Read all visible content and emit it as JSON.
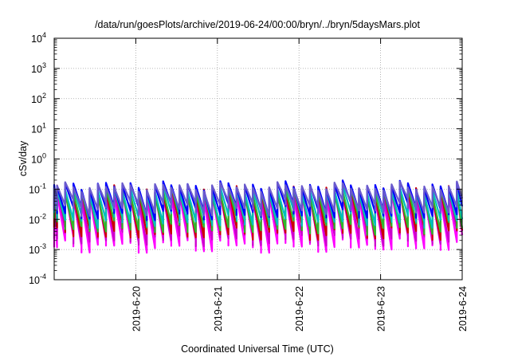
{
  "chart_data": {
    "type": "line",
    "title": "/data/run/goesPlots/archive/2019-06-24/00:00/bryn/../bryn/5daysMars.plot",
    "xlabel": "Coordinated Universal Time (UTC)",
    "ylabel": "cSv/day",
    "y_scale": "log",
    "ylim": [
      0.0001,
      10000
    ],
    "y_ticks": [
      {
        "value": 0.0001,
        "base": "10",
        "exp": "-4"
      },
      {
        "value": 0.001,
        "base": "10",
        "exp": "-3"
      },
      {
        "value": 0.01,
        "base": "10",
        "exp": "-2"
      },
      {
        "value": 0.1,
        "base": "10",
        "exp": "-1"
      },
      {
        "value": 1,
        "base": "10",
        "exp": "0"
      },
      {
        "value": 10,
        "base": "10",
        "exp": "1"
      },
      {
        "value": 100,
        "base": "10",
        "exp": "2"
      },
      {
        "value": 1000,
        "base": "10",
        "exp": "3"
      },
      {
        "value": 10000,
        "base": "10",
        "exp": "4"
      }
    ],
    "xlim": [
      "2019-06-19 00:00",
      "2019-06-24 00:00"
    ],
    "x_ticks": [
      {
        "date": "2019-06-20",
        "label": "2019-6-20"
      },
      {
        "date": "2019-06-21",
        "label": "2019-6-21"
      },
      {
        "date": "2019-06-22",
        "label": "2019-6-22"
      },
      {
        "date": "2019-06-23",
        "label": "2019-6-23"
      },
      {
        "date": "2019-06-24",
        "label": "2019-6-24"
      }
    ],
    "grid": true,
    "sawtooth_period_hours": 2.4,
    "series": [
      {
        "color": "#ff00ff",
        "peak": 0.06,
        "trough": 0.0015
      },
      {
        "color": "#cc00cc",
        "peak": 0.07,
        "trough": 0.0025
      },
      {
        "color": "#cc0000",
        "peak": 0.09,
        "trough": 0.004
      },
      {
        "color": "#2db82d",
        "peak": 0.08,
        "trough": 0.006
      },
      {
        "color": "#00bfbf",
        "peak": 0.1,
        "trough": 0.01
      },
      {
        "color": "#0000ff",
        "peak": 0.13,
        "trough": 0.018
      },
      {
        "color": "#6a5acd",
        "peak": 0.12,
        "trough": 0.025
      }
    ]
  }
}
